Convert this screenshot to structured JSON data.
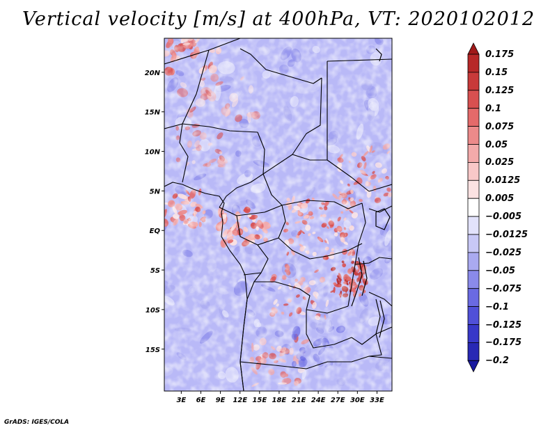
{
  "title": "Vertical velocity [m/s] at 400hPa, VT: 2020102012",
  "credit": "GrADS: IGES/COLA",
  "map": {
    "lon_ticks": [
      "3E",
      "6E",
      "9E",
      "12E",
      "15E",
      "18E",
      "21E",
      "24E",
      "27E",
      "30E",
      "33E"
    ],
    "lat_ticks": [
      "20N",
      "15N",
      "10N",
      "5N",
      "EQ",
      "5S",
      "10S",
      "15S"
    ],
    "colors": {
      "background_field": "#b9b9f7",
      "border": "#000000"
    }
  },
  "colorbar": {
    "levels": [
      "0.175",
      "0.15",
      "0.125",
      "0.1",
      "0.075",
      "0.05",
      "0.025",
      "0.0125",
      "0.005",
      "−0.005",
      "−0.0125",
      "−0.025",
      "−0.05",
      "−0.075",
      "−0.1",
      "−0.125",
      "−0.175",
      "−0.2"
    ],
    "colors": [
      "#a01a1a",
      "#b72828",
      "#c83a3a",
      "#d85050",
      "#e46a6a",
      "#ec8a8a",
      "#f3aaaa",
      "#f8c8c8",
      "#fbe2e2",
      "#ffffff",
      "#e2e2fb",
      "#c8c8f6",
      "#aaaaf0",
      "#8a8aea",
      "#6a6ae2",
      "#5050d8",
      "#3838c8",
      "#2828b4",
      "#1a1aa0"
    ]
  }
}
